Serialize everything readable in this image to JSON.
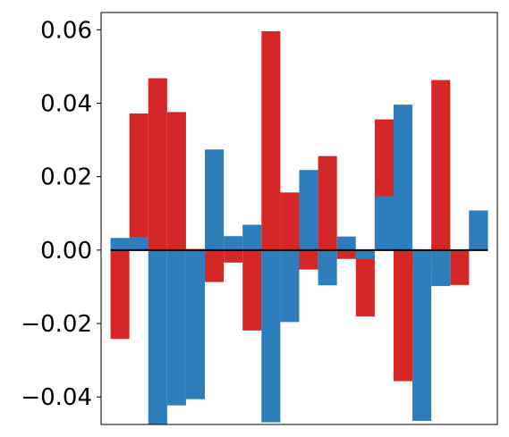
{
  "chart_data": {
    "type": "bar",
    "title": "",
    "xlabel": "",
    "ylabel": "",
    "legend": "none",
    "grid": false,
    "xlim": [
      -1,
      20
    ],
    "ylim": [
      -0.0475,
      0.0647
    ],
    "yticks": [
      -0.04,
      -0.02,
      0.0,
      0.02,
      0.04,
      0.06
    ],
    "ytick_labels": [
      "−0.04",
      "−0.02",
      "0.00",
      "0.02",
      "0.04",
      "0.06"
    ],
    "series": [
      {
        "color": "#d62728",
        "x": [
          0,
          1,
          2,
          3,
          4,
          5,
          6,
          7,
          8,
          9,
          10,
          11,
          12,
          13,
          14,
          15,
          16,
          17,
          18,
          19
        ],
        "values": [
          -0.0242,
          0.0372,
          0.0468,
          0.0376,
          0.0003,
          -0.0087,
          -0.0034,
          -0.0219,
          0.0596,
          0.0157,
          -0.0053,
          0.0256,
          -0.0024,
          -0.0181,
          0.0356,
          -0.0357,
          -0.0047,
          0.0463,
          -0.0095,
          0.0105
        ]
      },
      {
        "color": "#2e7ebc",
        "x": [
          0,
          1,
          2,
          3,
          4,
          5,
          6,
          7,
          8,
          9,
          10,
          11,
          12,
          13,
          14,
          15,
          16,
          17,
          18,
          19
        ],
        "values": [
          0.0033,
          0.0036,
          -0.0474,
          -0.0423,
          -0.0406,
          0.0274,
          0.0038,
          0.0069,
          -0.0469,
          -0.0196,
          0.0218,
          -0.0096,
          0.0037,
          -0.0024,
          0.0147,
          0.0396,
          -0.0465,
          -0.0098,
          0.0,
          0.0108
        ]
      }
    ],
    "colors": {
      "zero_line": "#000000",
      "axes": "#000000"
    }
  }
}
